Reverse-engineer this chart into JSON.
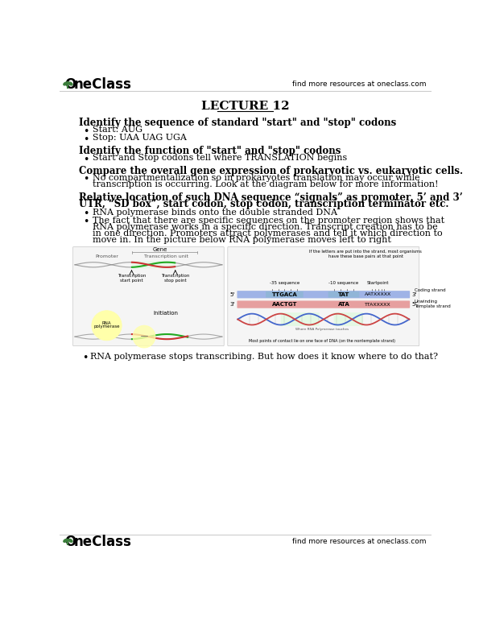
{
  "bg_color": "#ffffff",
  "header_right_text": "find more resources at oneclass.com",
  "footer_right_text": "find more resources at oneclass.com",
  "title": "LECTURE 12",
  "sections": [
    {
      "heading": "Identify the sequence of standard \"start\" and \"stop\" codons",
      "bullets": [
        "Start: AUG",
        "Stop: UAA UAG UGA"
      ]
    },
    {
      "heading": "Identify the function of \"start\" and \"stop\" codons",
      "bullets": [
        "Start and Stop codons tell where TRANSLATION begins"
      ]
    },
    {
      "heading": "Compare the overall gene expression of prokaryotic vs. eukaryotic cells.",
      "bullets": [
        "No compartmentalization so in prokaryotes translation may occur while\ntranscription is occurring. Look at the diagram below for more information!"
      ]
    },
    {
      "heading": "Relative location of such DNA sequence “signals” as promoter, 5’ and 3’\nUTR, “SD box”, start codon, stop codon, transcription terminator etc.",
      "bullets": [
        "RNA polymerase binds onto the double stranded DNA",
        "The fact that there are specific sequences on the promoter region shows that\nRNA polymerase works in a specific direction. Transcript creation has to be\nin one direction. Promoters attract polymerases and tell it which direction to\nmove in. In the picture below RNA polymerase moves left to right"
      ]
    }
  ],
  "last_bullet": "RNA polymerase stops transcribing. But how does it know where to do that?",
  "text_color": "#000000",
  "heading_color": "#000000",
  "logo_green": "#3a7d3a"
}
